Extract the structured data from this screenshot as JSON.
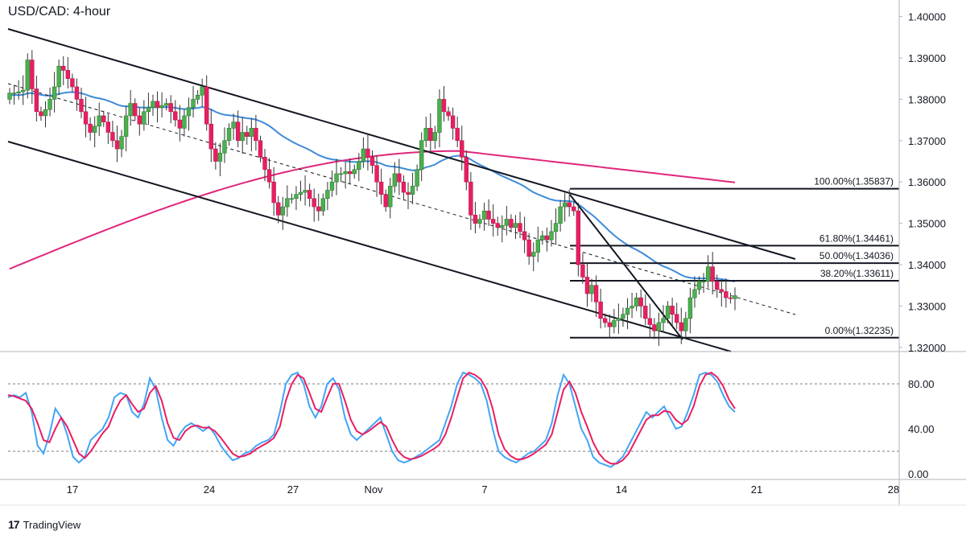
{
  "title": "USD/CAD: 4-hour",
  "brand": {
    "logo": "17",
    "name": "TradingView"
  },
  "colors": {
    "up": "#26a69a",
    "up_body": "#4caf50",
    "down": "#e91e63",
    "ema_fast": "#3d8bd9",
    "ema_slow": "#e0267a",
    "stoch_k": "#42a5f5",
    "stoch_d": "#e91e63",
    "grid": "#e0e3eb"
  },
  "chart_data": [
    {
      "type": "candlestick",
      "title": "USD/CAD: 4-hour",
      "ylim": [
        1.319,
        1.404
      ],
      "y_ticks": [
        "1.40000",
        "1.39000",
        "1.38000",
        "1.37000",
        "1.36000",
        "1.35000",
        "1.34000",
        "1.33000",
        "1.32000"
      ],
      "x_ticks": [
        "17",
        "24",
        "27",
        "Nov",
        "7",
        "14",
        "21",
        "28"
      ],
      "closes": [
        1.3815,
        1.3815,
        1.3818,
        1.3822,
        1.3895,
        1.3825,
        1.377,
        1.376,
        1.3775,
        1.38,
        1.383,
        1.388,
        1.387,
        1.385,
        1.383,
        1.38,
        1.377,
        1.374,
        1.372,
        1.3735,
        1.376,
        1.3745,
        1.372,
        1.37,
        1.368,
        1.371,
        1.376,
        1.379,
        1.376,
        1.374,
        1.377,
        1.378,
        1.3795,
        1.378,
        1.3785,
        1.379,
        1.377,
        1.375,
        1.373,
        1.376,
        1.378,
        1.38,
        1.381,
        1.383,
        1.374,
        1.368,
        1.365,
        1.367,
        1.37,
        1.373,
        1.3745,
        1.37,
        1.372,
        1.371,
        1.373,
        1.37,
        1.366,
        1.363,
        1.36,
        1.355,
        1.352,
        1.354,
        1.356,
        1.356,
        1.357,
        1.3575,
        1.358,
        1.356,
        1.354,
        1.353,
        1.356,
        1.358,
        1.36,
        1.362,
        1.362,
        1.3625,
        1.362,
        1.363,
        1.365,
        1.368,
        1.366,
        1.364,
        1.36,
        1.357,
        1.354,
        1.359,
        1.362,
        1.36,
        1.3575,
        1.357,
        1.359,
        1.363,
        1.37,
        1.373,
        1.37,
        1.372,
        1.38,
        1.377,
        1.376,
        1.373,
        1.37,
        1.366,
        1.36,
        1.352,
        1.35,
        1.351,
        1.353,
        1.351,
        1.35,
        1.349,
        1.3495,
        1.351,
        1.349,
        1.35,
        1.348,
        1.346,
        1.342,
        1.343,
        1.346,
        1.347,
        1.346,
        1.348,
        1.35,
        1.354,
        1.355,
        1.354,
        1.353,
        1.34,
        1.337,
        1.333,
        1.335,
        1.331,
        1.327,
        1.326,
        1.325,
        1.3265,
        1.327,
        1.328,
        1.3295,
        1.33,
        1.332,
        1.33,
        1.327,
        1.3255,
        1.324,
        1.326,
        1.327,
        1.33,
        1.328,
        1.326,
        1.324,
        1.327,
        1.332,
        1.334,
        1.336,
        1.336,
        1.3395,
        1.336,
        1.334,
        1.3335,
        1.332,
        1.3318,
        1.3325
      ]
    },
    {
      "type": "line",
      "title": "Stochastic",
      "ylim": [
        -5,
        108
      ],
      "y_ticks": [
        "80.00",
        "40.00",
        "0.00"
      ],
      "levels": [
        80,
        20
      ],
      "series": [
        {
          "values": [
            68,
            70,
            68,
            72,
            55,
            25,
            18,
            35,
            58,
            50,
            35,
            15,
            10,
            15,
            30,
            35,
            40,
            50,
            68,
            72,
            70,
            55,
            50,
            62,
            85,
            75,
            50,
            30,
            25,
            35,
            42,
            45,
            42,
            38,
            42,
            35,
            25,
            18,
            12,
            14,
            18,
            20,
            25,
            28,
            30,
            35,
            55,
            80,
            88,
            90,
            80,
            60,
            50,
            60,
            80,
            85,
            75,
            50,
            35,
            30,
            35,
            40,
            45,
            50,
            35,
            20,
            12,
            10,
            12,
            15,
            18,
            22,
            26,
            30,
            45,
            60,
            80,
            90,
            88,
            85,
            80,
            65,
            40,
            20,
            15,
            12,
            10,
            14,
            18,
            20,
            25,
            30,
            45,
            70,
            88,
            80,
            60,
            40,
            30,
            15,
            10,
            8,
            6,
            10,
            15,
            25,
            35,
            45,
            55,
            50,
            55,
            60,
            50,
            40,
            42,
            55,
            70,
            88,
            90,
            88,
            82,
            70,
            60,
            55
          ]
        },
        {
          "values": [
            70,
            69,
            67,
            65,
            58,
            45,
            30,
            28,
            40,
            50,
            42,
            30,
            18,
            14,
            20,
            28,
            36,
            42,
            55,
            65,
            70,
            62,
            55,
            58,
            72,
            78,
            65,
            45,
            32,
            30,
            38,
            42,
            43,
            41,
            41,
            38,
            32,
            25,
            18,
            15,
            16,
            18,
            22,
            25,
            28,
            32,
            42,
            65,
            80,
            88,
            85,
            72,
            58,
            55,
            68,
            80,
            80,
            65,
            48,
            38,
            35,
            38,
            42,
            46,
            42,
            30,
            20,
            15,
            13,
            14,
            16,
            19,
            22,
            26,
            35,
            50,
            68,
            85,
            90,
            88,
            84,
            75,
            58,
            35,
            22,
            16,
            13,
            13,
            15,
            18,
            22,
            26,
            35,
            55,
            75,
            82,
            72,
            55,
            42,
            28,
            18,
            12,
            9,
            9,
            12,
            18,
            28,
            38,
            48,
            52,
            52,
            56,
            55,
            48,
            44,
            48,
            60,
            78,
            88,
            90,
            86,
            78,
            66,
            58
          ]
        }
      ]
    }
  ],
  "annotations": {
    "fib_labels": [
      "100.00%(1.35837)",
      "61.80%(1.34461)",
      "50.00%(1.34036)",
      "38.20%(1.33611)",
      "0.00%(1.32235)"
    ],
    "fib_levels": [
      1.35837,
      1.34461,
      1.34036,
      1.33611,
      1.32235
    ]
  }
}
